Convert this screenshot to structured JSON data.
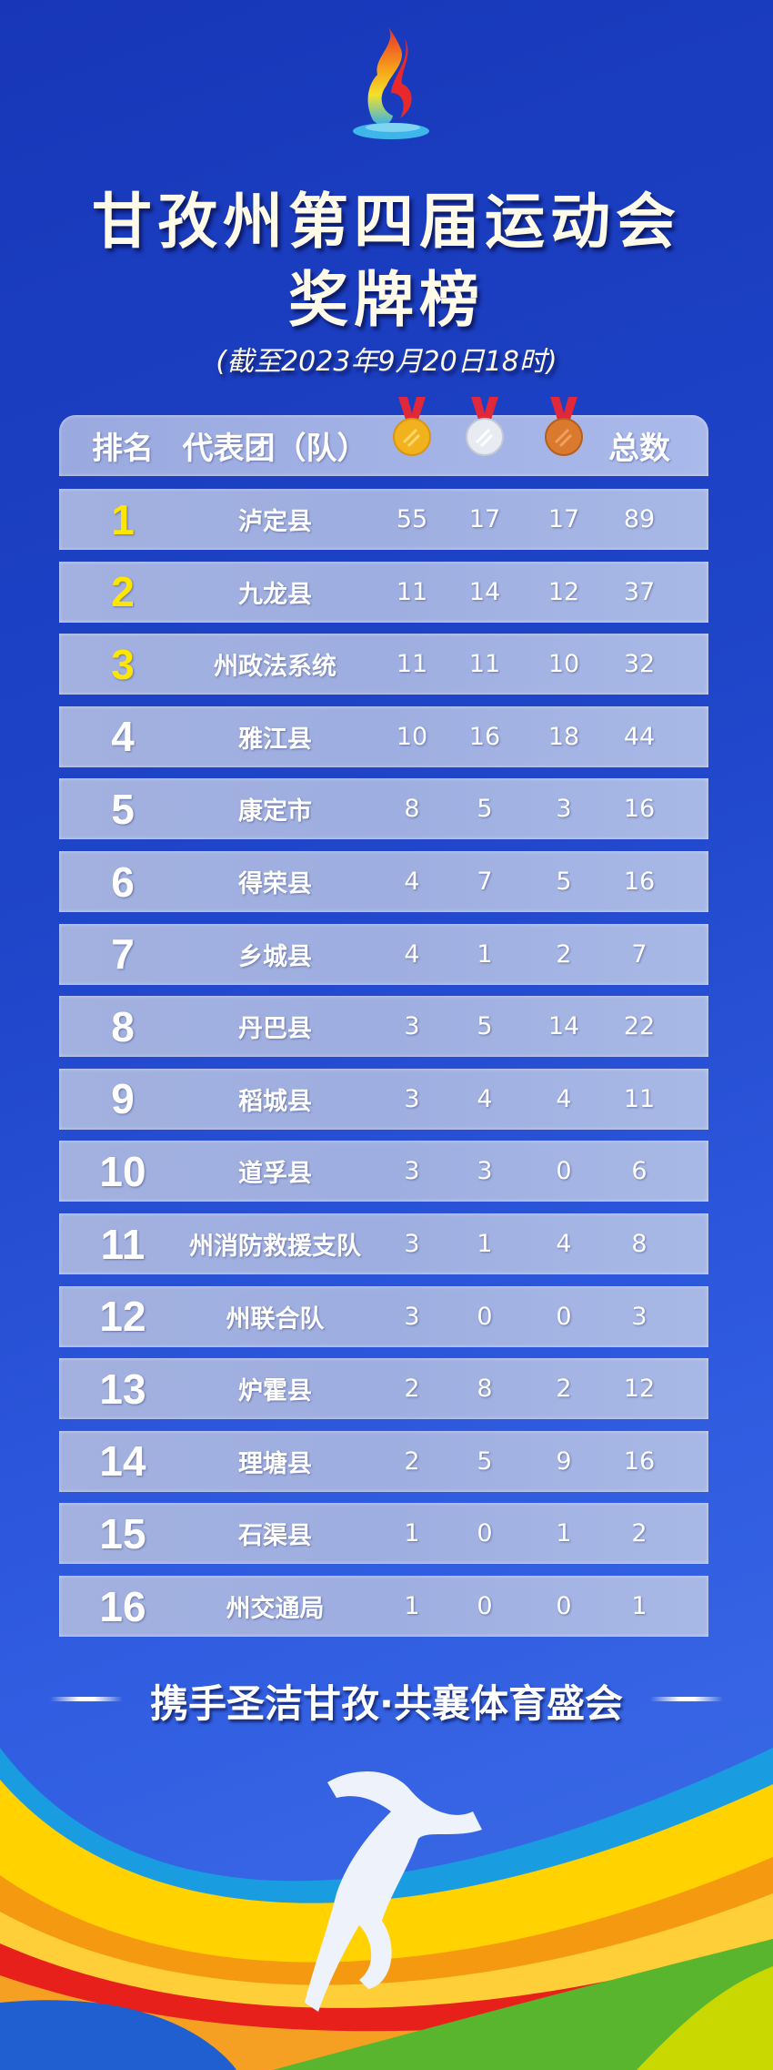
{
  "header": {
    "title_line1": "甘孜州第四届运动会",
    "title_line2": "奖牌榜",
    "subtitle": "(截至2023年9月20日18时)"
  },
  "table": {
    "columns": {
      "rank": "排名",
      "team": "代表团（队）",
      "gold": "gold-medal-icon",
      "silver": "silver-medal-icon",
      "bronze": "bronze-medal-icon",
      "total": "总数"
    },
    "rows": [
      {
        "rank": "1",
        "team": "泸定县",
        "gold": "55",
        "silver": "17",
        "bronze": "17",
        "total": "89"
      },
      {
        "rank": "2",
        "team": "九龙县",
        "gold": "11",
        "silver": "14",
        "bronze": "12",
        "total": "37"
      },
      {
        "rank": "3",
        "team": "州政法系统",
        "gold": "11",
        "silver": "11",
        "bronze": "10",
        "total": "32"
      },
      {
        "rank": "4",
        "team": "雅江县",
        "gold": "10",
        "silver": "16",
        "bronze": "18",
        "total": "44"
      },
      {
        "rank": "5",
        "team": "康定市",
        "gold": "8",
        "silver": "5",
        "bronze": "3",
        "total": "16"
      },
      {
        "rank": "6",
        "team": "得荣县",
        "gold": "4",
        "silver": "7",
        "bronze": "5",
        "total": "16"
      },
      {
        "rank": "7",
        "team": "乡城县",
        "gold": "4",
        "silver": "1",
        "bronze": "2",
        "total": "7"
      },
      {
        "rank": "8",
        "team": "丹巴县",
        "gold": "3",
        "silver": "5",
        "bronze": "14",
        "total": "22"
      },
      {
        "rank": "9",
        "team": "稻城县",
        "gold": "3",
        "silver": "4",
        "bronze": "4",
        "total": "11"
      },
      {
        "rank": "10",
        "team": "道孚县",
        "gold": "3",
        "silver": "3",
        "bronze": "0",
        "total": "6"
      },
      {
        "rank": "11",
        "team": "州消防救援支队",
        "gold": "3",
        "silver": "1",
        "bronze": "4",
        "total": "8"
      },
      {
        "rank": "12",
        "team": "州联合队",
        "gold": "3",
        "silver": "0",
        "bronze": "0",
        "total": "3"
      },
      {
        "rank": "13",
        "team": "炉霍县",
        "gold": "2",
        "silver": "8",
        "bronze": "2",
        "total": "12"
      },
      {
        "rank": "14",
        "team": "理塘县",
        "gold": "2",
        "silver": "5",
        "bronze": "9",
        "total": "16"
      },
      {
        "rank": "15",
        "team": "石渠县",
        "gold": "1",
        "silver": "0",
        "bronze": "1",
        "total": "2"
      },
      {
        "rank": "16",
        "team": "州交通局",
        "gold": "1",
        "silver": "0",
        "bronze": "0",
        "total": "1"
      }
    ]
  },
  "footer": {
    "slogan": "携手圣洁甘孜·共襄体育盛会"
  },
  "colors": {
    "background": "#1f45c9",
    "top3_rank": "#ffe600",
    "gold": "#f2b21e",
    "silver": "#e8ecf2",
    "bronze": "#d97a2e",
    "ribbon": "#e0283a"
  }
}
